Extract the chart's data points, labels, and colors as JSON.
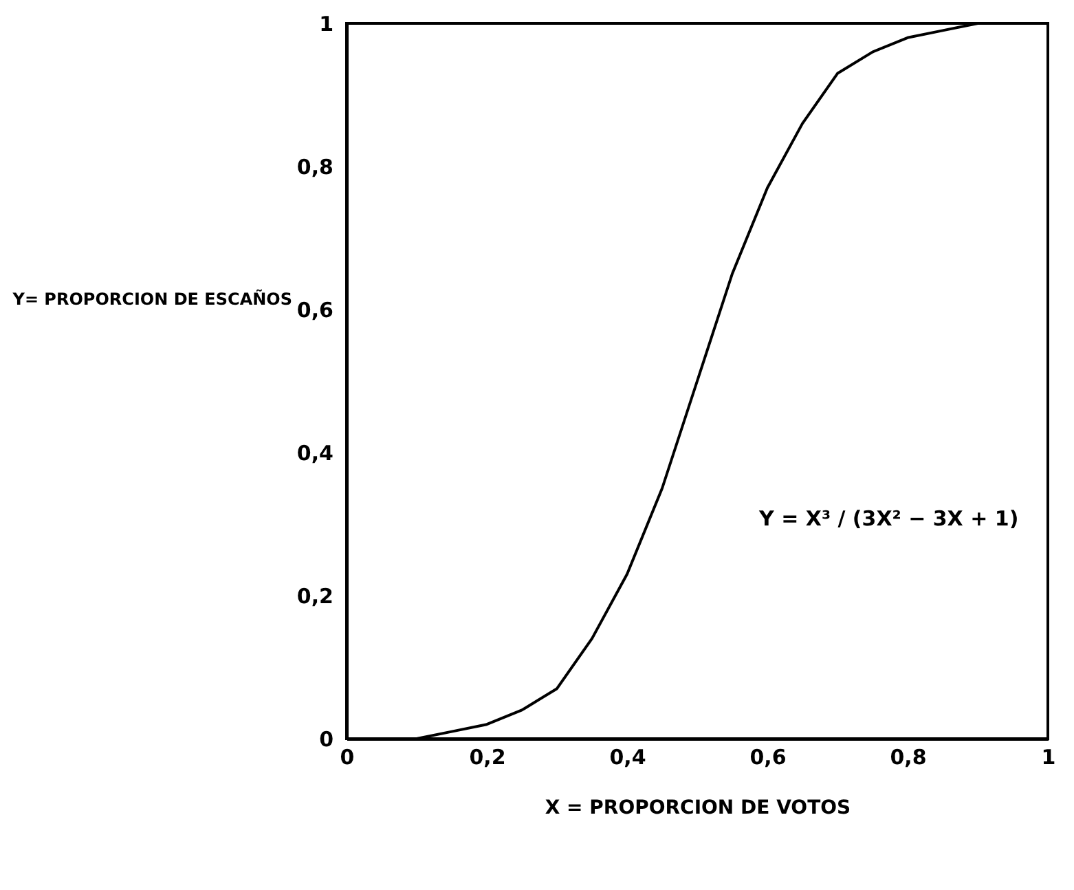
{
  "chart_data": {
    "type": "line",
    "xlabel": "X =   PROPORCION DE VOTOS",
    "ylabel": "Y=  PROPORCION DE ESCAÑOS",
    "x": [
      0,
      0.05,
      0.1,
      0.15,
      0.2,
      0.25,
      0.3,
      0.35,
      0.4,
      0.45,
      0.5,
      0.55,
      0.6,
      0.65,
      0.7,
      0.75,
      0.8,
      0.85,
      0.9,
      0.95,
      1
    ],
    "series": [
      {
        "color": "#000000",
        "values": [
          0,
          0,
          0,
          0.01,
          0.02,
          0.04,
          0.07,
          0.14,
          0.23,
          0.35,
          0.5,
          0.65,
          0.77,
          0.86,
          0.93,
          0.96,
          0.98,
          0.99,
          1,
          1,
          1
        ]
      }
    ],
    "xlim": [
      0,
      1
    ],
    "ylim": [
      0,
      1
    ],
    "xticks": [
      0,
      {
        "value": 0.2,
        "label": "0,2"
      },
      {
        "value": 0.4,
        "label": "0,4"
      },
      {
        "value": 0.6,
        "label": "0,6"
      },
      {
        "value": 0.8,
        "label": "0,8"
      },
      1
    ],
    "yticks": [
      0,
      {
        "value": 0.2,
        "label": "0,2"
      },
      {
        "value": 0.4,
        "label": "0,4"
      },
      {
        "value": 0.6,
        "label": "0,6"
      },
      {
        "value": 0.8,
        "label": "0,8"
      },
      1
    ],
    "annotations": [
      "Y = X³ / (3X² − 3X + 1)"
    ],
    "grid": false,
    "marker": "none",
    "line_style": "solid"
  }
}
